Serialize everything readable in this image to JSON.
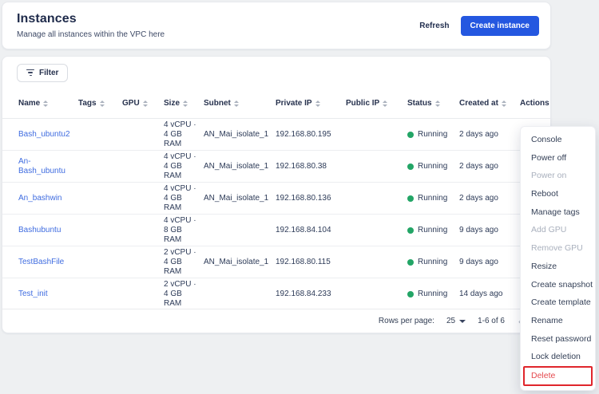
{
  "header": {
    "title": "Instances",
    "subtitle": "Manage all instances within the VPC here",
    "refresh_label": "Refresh",
    "create_label": "Create instance"
  },
  "toolbar": {
    "filter_label": "Filter"
  },
  "table": {
    "columns": [
      {
        "label": "Name",
        "sortable": true
      },
      {
        "label": "Tags",
        "sortable": true
      },
      {
        "label": "GPU",
        "sortable": true
      },
      {
        "label": "Size",
        "sortable": true
      },
      {
        "label": "Subnet",
        "sortable": true
      },
      {
        "label": "Private IP",
        "sortable": true
      },
      {
        "label": "Public IP",
        "sortable": true
      },
      {
        "label": "Status",
        "sortable": true
      },
      {
        "label": "Created at",
        "sortable": true
      },
      {
        "label": "Actions",
        "sortable": false
      }
    ],
    "rows": [
      {
        "name": "Bash_ubuntu2",
        "tags": "",
        "gpu": "",
        "size": "4 vCPU · 4 GB RAM",
        "subnet": "AN_Mai_isolate_1",
        "private_ip": "192.168.80.195",
        "public_ip": "",
        "status": "Running",
        "created_at": "2 days ago"
      },
      {
        "name": "An-Bash_ubuntu",
        "tags": "",
        "gpu": "",
        "size": "4 vCPU · 4 GB RAM",
        "subnet": "AN_Mai_isolate_1",
        "private_ip": "192.168.80.38",
        "public_ip": "",
        "status": "Running",
        "created_at": "2 days ago"
      },
      {
        "name": "An_bashwin",
        "tags": "",
        "gpu": "",
        "size": "4 vCPU · 4 GB RAM",
        "subnet": "AN_Mai_isolate_1",
        "private_ip": "192.168.80.136",
        "public_ip": "",
        "status": "Running",
        "created_at": "2 days ago"
      },
      {
        "name": "Bashubuntu",
        "tags": "",
        "gpu": "",
        "size": "4 vCPU · 8 GB RAM",
        "subnet": "",
        "private_ip": "192.168.84.104",
        "public_ip": "",
        "status": "Running",
        "created_at": "9 days ago"
      },
      {
        "name": "TestBashFile",
        "tags": "",
        "gpu": "",
        "size": "2 vCPU · 4 GB RAM",
        "subnet": "AN_Mai_isolate_1",
        "private_ip": "192.168.80.115",
        "public_ip": "",
        "status": "Running",
        "created_at": "9 days ago"
      },
      {
        "name": "Test_init",
        "tags": "",
        "gpu": "",
        "size": "2 vCPU · 4 GB RAM",
        "subnet": "",
        "private_ip": "192.168.84.233",
        "public_ip": "",
        "status": "Running",
        "created_at": "14 days ago"
      }
    ]
  },
  "pagination": {
    "rows_per_page_label": "Rows per page:",
    "rows_per_page_value": "25",
    "range_label": "1-6 of 6",
    "prev_icon": "‹"
  },
  "context_menu": {
    "items": [
      {
        "label": "Console",
        "state": "normal"
      },
      {
        "label": "Power off",
        "state": "normal"
      },
      {
        "label": "Power on",
        "state": "disabled"
      },
      {
        "label": "Reboot",
        "state": "normal"
      },
      {
        "label": "Manage tags",
        "state": "normal"
      },
      {
        "label": "Add GPU",
        "state": "disabled"
      },
      {
        "label": "Remove GPU",
        "state": "disabled"
      },
      {
        "label": "Resize",
        "state": "normal"
      },
      {
        "label": "Create snapshot",
        "state": "normal"
      },
      {
        "label": "Create template",
        "state": "normal"
      },
      {
        "label": "Rename",
        "state": "normal"
      },
      {
        "label": "Reset password",
        "state": "normal"
      },
      {
        "label": "Lock deletion",
        "state": "normal"
      },
      {
        "label": "Delete",
        "state": "danger",
        "highlighted": true
      }
    ]
  },
  "colors": {
    "primary": "#2457e0",
    "link": "#3f6ce0",
    "status_running": "#23a566",
    "danger": "#e5484d",
    "highlight_box": "#e0262c",
    "background": "#eef0f2"
  },
  "status_legend": {
    "running_label": "Running"
  }
}
